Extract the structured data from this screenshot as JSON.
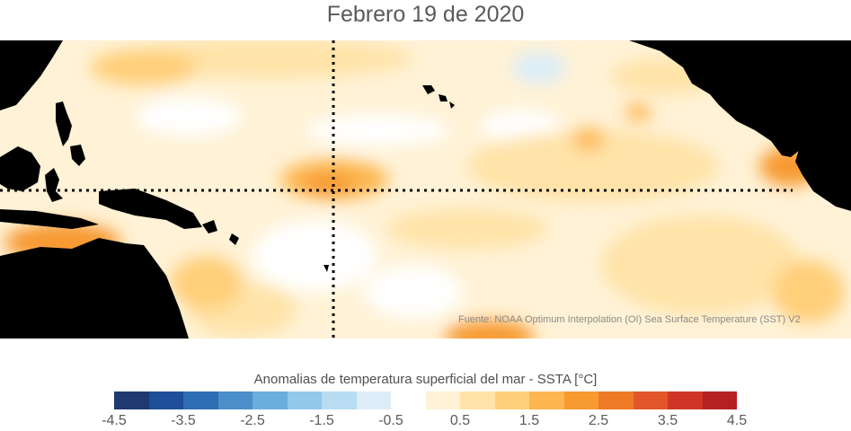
{
  "title": "Febrero 19 de 2020",
  "source_note": "Fuente: NOAA Optimum Interpolation (OI) Sea Surface Temperature (SST) V2",
  "colorbar": {
    "title": "Anomalias de temperatura superficial del mar - SSTA  [°C]",
    "bins": [
      -4.5,
      -4,
      -3.5,
      -3,
      -2.5,
      -2,
      -1.5,
      -1,
      -0.5,
      0,
      0.5,
      1,
      1.5,
      2,
      2.5,
      3,
      3.5,
      4,
      4.5
    ],
    "colors": [
      "#1f3a70",
      "#1f4f9a",
      "#2c6db4",
      "#4a8fca",
      "#6aaede",
      "#92c8ea",
      "#b8dcf2",
      "#dcedf8",
      "#ffffff",
      "#fff2d6",
      "#ffe3a8",
      "#ffcf7a",
      "#fdb650",
      "#f79a30",
      "#ef7a25",
      "#e2562a",
      "#cf3527",
      "#b52023"
    ],
    "tick_labels": [
      "-4.5",
      "-3.5",
      "-2.5",
      "-1.5",
      "-0.5",
      "0.5",
      "1.5",
      "2.5",
      "3.5",
      "4.5"
    ]
  },
  "map": {
    "region": "Pacifico tropical",
    "reference_lines": [
      "equator",
      "180-meridian"
    ],
    "land_color": "#000000",
    "warm_anomaly_areas": [
      "Pacifico central ecuatorial",
      "Mar de Timor",
      "Costa de Ecuador",
      "Pacifico sur central"
    ],
    "cool_anomaly_areas": [
      "Pacifico norte central"
    ]
  }
}
